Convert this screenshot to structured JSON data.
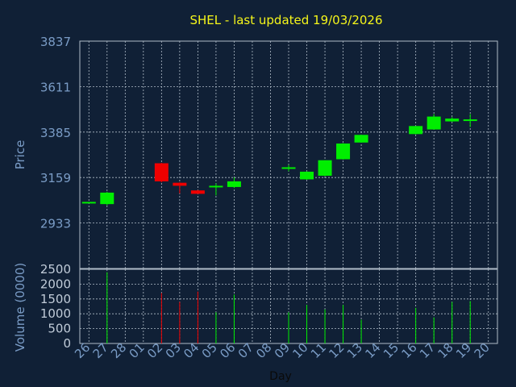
{
  "chart_data": {
    "type": "candlestick",
    "title": "SHEL - last updated 19/03/2026",
    "xlabel": "Day",
    "price_panel": {
      "ylabel": "Price",
      "ylim": [
        2707,
        3837
      ],
      "yticks": [
        "3837",
        "3611",
        "3385",
        "3159",
        "2933"
      ],
      "grid": true
    },
    "volume_panel": {
      "ylabel": "Volume (0000)",
      "ylim": [
        0,
        2500
      ],
      "yticks": [
        "0",
        "500",
        "1000",
        "1500",
        "2000",
        "2500"
      ],
      "grid": true
    },
    "categories": [
      "26",
      "27",
      "28",
      "01",
      "02",
      "03",
      "04",
      "05",
      "06",
      "07",
      "08",
      "09",
      "10",
      "11",
      "12",
      "13",
      "14",
      "15",
      "16",
      "17",
      "18",
      "19",
      "20"
    ],
    "candles": [
      {
        "day": "26",
        "open": 3038,
        "close": 3038,
        "high": 3038,
        "low": 3038,
        "volume": 0
      },
      {
        "day": "27",
        "open": 3027,
        "close": 3084,
        "high": 3088,
        "low": 3020,
        "volume": 2400
      },
      {
        "day": "02",
        "open": 3230,
        "close": 3140,
        "high": 3232,
        "low": 3135,
        "volume": 1700
      },
      {
        "day": "03",
        "open": 3133,
        "close": 3118,
        "high": 3135,
        "low": 3080,
        "volume": 1400
      },
      {
        "day": "04",
        "open": 3095,
        "close": 3078,
        "high": 3097,
        "low": 3077,
        "volume": 1750
      },
      {
        "day": "05",
        "open": 3118,
        "close": 3118,
        "high": 3130,
        "low": 3070,
        "volume": 1050
      },
      {
        "day": "06",
        "open": 3112,
        "close": 3140,
        "high": 3160,
        "low": 3107,
        "volume": 1650
      },
      {
        "day": "09",
        "open": 3210,
        "close": 3210,
        "high": 3222,
        "low": 3190,
        "volume": 1050
      },
      {
        "day": "10",
        "open": 3150,
        "close": 3188,
        "high": 3190,
        "low": 3148,
        "volume": 1300
      },
      {
        "day": "11",
        "open": 3168,
        "close": 3245,
        "high": 3245,
        "low": 3165,
        "volume": 1150
      },
      {
        "day": "12",
        "open": 3250,
        "close": 3328,
        "high": 3330,
        "low": 3248,
        "volume": 1300
      },
      {
        "day": "13",
        "open": 3333,
        "close": 3371,
        "high": 3372,
        "low": 3332,
        "volume": 800
      },
      {
        "day": "16",
        "open": 3375,
        "close": 3415,
        "high": 3415,
        "low": 3373,
        "volume": 1200
      },
      {
        "day": "17",
        "open": 3398,
        "close": 3462,
        "high": 3475,
        "low": 3397,
        "volume": 880
      },
      {
        "day": "18",
        "open": 3438,
        "close": 3452,
        "high": 3460,
        "low": 3435,
        "volume": 1400
      },
      {
        "day": "19",
        "open": 3445,
        "close": 3448,
        "high": 3475,
        "low": 3410,
        "volume": 1430
      }
    ],
    "colors": {
      "background": "#102036",
      "plot_border": "#b0bcc8",
      "grid": "#b0bcc8",
      "title": "#f5f51a",
      "axis_text": "#7a9cc6",
      "tick_text": "#c0cbd8",
      "up": "#00ee00",
      "down": "#ee0000",
      "xlabel": "#0a0a0a"
    }
  }
}
